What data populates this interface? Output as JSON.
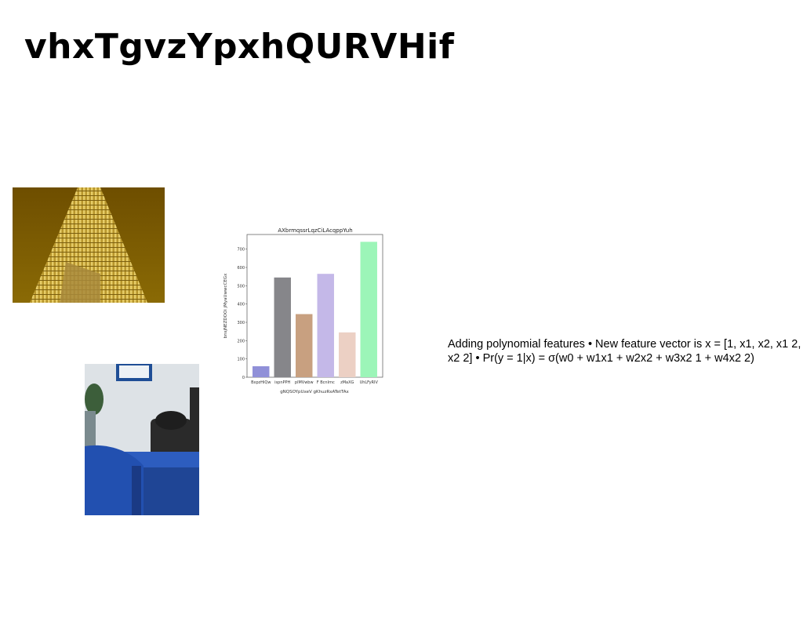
{
  "slide": {
    "title": "vhxTgvzYpxhQURVHif",
    "body_text": "Adding polynomial features • New feature vector is x = [1, x1, x2, x1 2, x2 2] • Pr(y = 1|x) = σ(w0 + w1x1 + w2x2 + w3x2 1 + w4x2 2)"
  },
  "images": {
    "building": {
      "icon": "building-photo",
      "colors": {
        "sky": "#7a5a00",
        "facade": "#c9a83a"
      }
    },
    "desk": {
      "icon": "desk-phone-photo",
      "colors": {
        "wall": "#d8dde2",
        "desk": "#2a55b8"
      }
    }
  },
  "chart_data": {
    "type": "bar",
    "title": "AXbrmqssrLqzCiLAcqppYuh",
    "xlabel": "gNQSOYpUxeV gKhuzRxATetTAx",
    "ylabel": "bnsjNEZDOOi jMyaUwwcCEGx",
    "categories": [
      "BxpzHiQw",
      "ispnPPH",
      "plMVwbw",
      "F BcnImc",
      "zMaXG",
      "UhLFyRIV"
    ],
    "values": [
      60,
      545,
      345,
      565,
      245,
      740
    ],
    "colors": [
      "#9090d8",
      "#86868a",
      "#c8a080",
      "#c4b8e8",
      "#ecd0c4",
      "#9cf5b8"
    ],
    "yticks": [
      "0",
      "100",
      "200",
      "300",
      "400",
      "500",
      "600",
      "700"
    ],
    "ylim": [
      0,
      780
    ],
    "grid": false
  }
}
